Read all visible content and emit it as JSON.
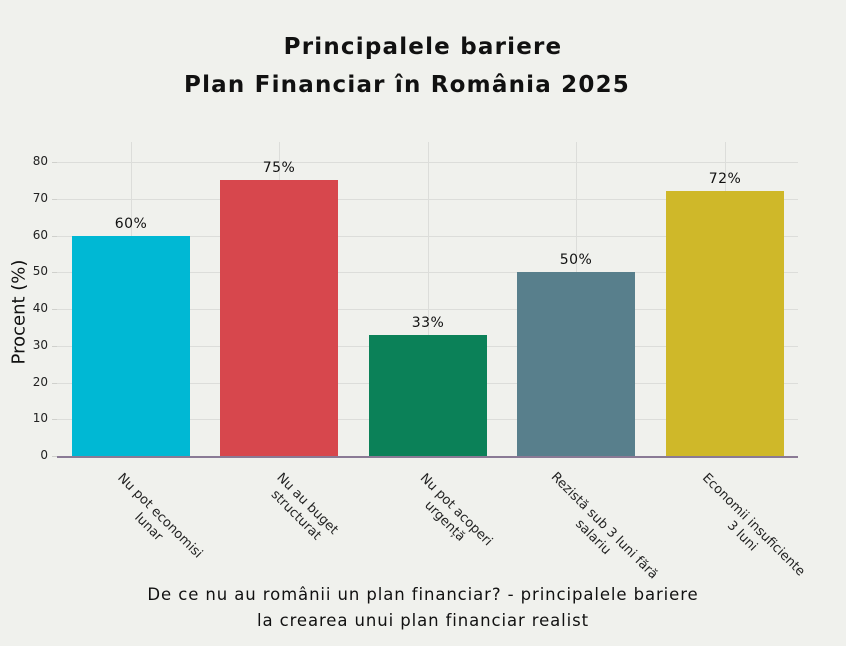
{
  "title": {
    "line1": "Principalele bariere",
    "line2": "Plan Financiar în România 2025"
  },
  "caption": {
    "line1": "De ce nu au românii un plan financiar? -  principalele bariere",
    "line2": "la crearea unui plan financiar realist"
  },
  "chart_data": {
    "type": "bar",
    "title": "Principalele bariere Plan Financiar în România 2025",
    "xlabel": "De ce nu au românii un plan financiar? -  principalele bariere la crearea unui plan financiar realist",
    "ylabel": "Procent (%)",
    "ylim": [
      0,
      85
    ],
    "yticks": [
      0,
      10,
      20,
      30,
      40,
      50,
      60,
      70,
      80
    ],
    "grid": true,
    "legend": null,
    "categories": [
      "Nu pot economisi lunar",
      "Nu au buget structurat",
      "Nu pot acoperi urgență",
      "Rezistă sub 3 luni fără salariu",
      "Economii insuficiente 3 luni"
    ],
    "category_lines": [
      [
        "Nu pot economisi",
        "lunar"
      ],
      [
        "Nu au buget",
        "structurat"
      ],
      [
        "Nu pot acoperi",
        "urgență"
      ],
      [
        "Rezistă sub 3 luni fără",
        "salariu"
      ],
      [
        "Economii insuficiente",
        "3 luni"
      ]
    ],
    "values": [
      60,
      75,
      33,
      50,
      72
    ],
    "data_labels": [
      "60%",
      "75%",
      "33%",
      "50%",
      "72%"
    ],
    "colors": [
      "#00b8d4",
      "#d7474d",
      "#0b8158",
      "#587f8c",
      "#cfb829"
    ]
  }
}
